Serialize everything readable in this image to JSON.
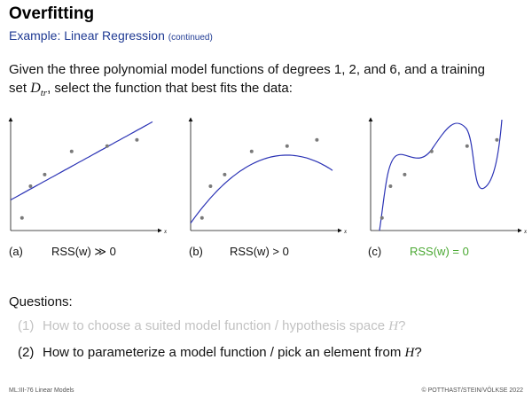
{
  "header": {
    "title": "Overfitting",
    "subtitle": "Example: Linear Regression",
    "subtitle_note": "(continued)"
  },
  "intro": {
    "line1": "Given the three polynomial model functions of degrees 1, 2, and 6, and a training",
    "line2_prefix": "set ",
    "dtr_symbol": "D",
    "dtr_subscript": "tr",
    "line2_suffix": ", select the function that best fits the data:"
  },
  "panels": [
    {
      "label": "(a)",
      "rss": "RSS(w) ≫ 0",
      "color": "#111111"
    },
    {
      "label": "(b)",
      "rss": "RSS(w) > 0",
      "color": "#111111"
    },
    {
      "label": "(c)",
      "rss": "RSS(w) = 0",
      "color": "#4aa832"
    }
  ],
  "axis_label": "x",
  "colors": {
    "curve": "#2b33b5",
    "points": "#7a7a7a",
    "subtitle": "#1f3a93",
    "highlight": "#4aa832",
    "faded": "#c2c2c2"
  },
  "questions": {
    "heading": "Questions:",
    "q1_num": "(1)",
    "q1_text": "How to choose a suited model function / hypothesis space ",
    "q1_symbol": "H",
    "q1_end": "?",
    "q2_num": "(2)",
    "q2_text": "How to parameterize a model function / pick an element from ",
    "q2_symbol": "H",
    "q2_end": "?"
  },
  "footer": {
    "left": "ML:III-76    Linear Models",
    "right": "© POTTHAST/STEIN/VÖLKSE 2022"
  },
  "chart_data": [
    {
      "type": "scatter",
      "model": "polynomial degree 1",
      "points": [
        [
          0.08,
          0.12
        ],
        [
          0.14,
          0.42
        ],
        [
          0.24,
          0.53
        ],
        [
          0.43,
          0.75
        ],
        [
          0.68,
          0.8
        ],
        [
          0.89,
          0.86
        ]
      ],
      "fit": "line"
    },
    {
      "type": "scatter",
      "model": "polynomial degree 2",
      "points": [
        [
          0.08,
          0.12
        ],
        [
          0.14,
          0.42
        ],
        [
          0.24,
          0.53
        ],
        [
          0.43,
          0.75
        ],
        [
          0.68,
          0.8
        ],
        [
          0.89,
          0.86
        ]
      ],
      "fit": "quadratic"
    },
    {
      "type": "scatter",
      "model": "polynomial degree 6",
      "points": [
        [
          0.08,
          0.12
        ],
        [
          0.14,
          0.42
        ],
        [
          0.24,
          0.53
        ],
        [
          0.43,
          0.75
        ],
        [
          0.68,
          0.8
        ],
        [
          0.89,
          0.86
        ]
      ],
      "fit": "interpolating"
    }
  ]
}
